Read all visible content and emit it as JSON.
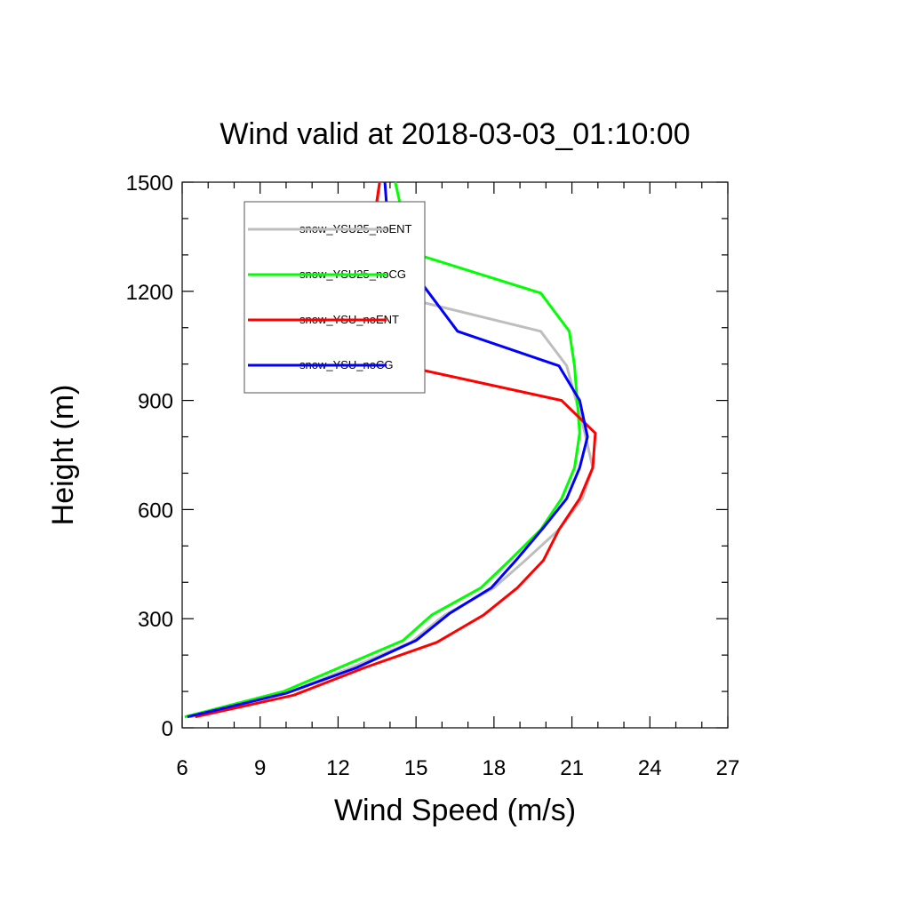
{
  "chart_data": {
    "type": "line",
    "title": "Wind valid at 2018-03-03_01:10:00",
    "xlabel": "Wind Speed (m/s)",
    "ylabel": "Height (m)",
    "xlim": [
      6,
      27
    ],
    "ylim": [
      0,
      1500
    ],
    "xticks": [
      6,
      9,
      12,
      15,
      18,
      21,
      24,
      27
    ],
    "yticks": [
      0,
      300,
      600,
      900,
      1200,
      1500
    ],
    "grid": false,
    "legend_position": "top-left, inside",
    "series": [
      {
        "name": "snow_YSU25_noENT",
        "color": "#bebebe",
        "x": [
          6.3,
          10.0,
          12.5,
          14.8,
          16.1,
          18.0,
          19.2,
          20.5,
          21.4,
          21.8,
          21.5,
          20.8,
          19.8,
          13.8,
          13.3,
          13.5,
          13.6
        ],
        "y": [
          30,
          95,
          165,
          235,
          310,
          385,
          460,
          545,
          630,
          715,
          810,
          995,
          1090,
          1195,
          1300,
          1405,
          1500
        ]
      },
      {
        "name": "snow_YSU25_noCG",
        "color": "#00ff00",
        "x": [
          6.1,
          9.9,
          12.2,
          14.5,
          15.6,
          17.5,
          18.6,
          19.8,
          20.6,
          21.1,
          21.3,
          21.1,
          20.9,
          19.8,
          15.1,
          14.5,
          14.2
        ],
        "y": [
          30,
          100,
          170,
          240,
          310,
          385,
          460,
          545,
          630,
          715,
          810,
          995,
          1090,
          1195,
          1300,
          1405,
          1500
        ]
      },
      {
        "name": "snow_YSU_noENT",
        "color": "#ff0000",
        "x": [
          6.5,
          10.3,
          13.0,
          15.8,
          17.6,
          18.9,
          19.9,
          20.5,
          21.3,
          21.8,
          21.9,
          20.6,
          14.5,
          13.9,
          13.0,
          13.0,
          13.4,
          13.6
        ],
        "y": [
          30,
          90,
          165,
          235,
          310,
          385,
          460,
          545,
          630,
          715,
          810,
          900,
          995,
          1090,
          1195,
          1300,
          1405,
          1500
        ]
      },
      {
        "name": "snow_YSU_noCG",
        "color": "#0000ff",
        "x": [
          6.2,
          10.0,
          12.7,
          15.0,
          16.3,
          17.9,
          18.9,
          19.9,
          20.8,
          21.3,
          21.6,
          21.3,
          20.5,
          16.6,
          15.5,
          14.4,
          13.9,
          13.8
        ],
        "y": [
          30,
          95,
          165,
          240,
          315,
          385,
          465,
          550,
          630,
          715,
          800,
          900,
          995,
          1090,
          1195,
          1300,
          1405,
          1500
        ]
      }
    ]
  }
}
